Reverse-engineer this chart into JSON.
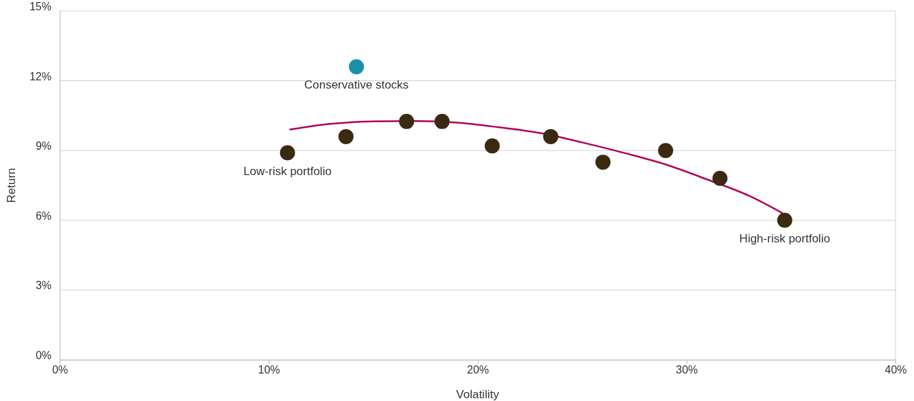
{
  "chart_data": {
    "type": "scatter",
    "xlabel": "Volatility",
    "ylabel": "Return",
    "xlim": [
      0,
      40
    ],
    "xticks": [
      {
        "value": 0,
        "label": "0%"
      },
      {
        "value": 10,
        "label": "10%"
      },
      {
        "value": 20,
        "label": "20%"
      },
      {
        "value": 30,
        "label": "30%"
      },
      {
        "value": 40,
        "label": "40%"
      }
    ],
    "ylim": [
      0,
      15
    ],
    "yticks": [
      {
        "value": 0,
        "label": "0%"
      },
      {
        "value": 3,
        "label": "3%"
      },
      {
        "value": 6,
        "label": "6%"
      },
      {
        "value": 9,
        "label": "9%"
      },
      {
        "value": 12,
        "label": "12%"
      },
      {
        "value": 15,
        "label": "15%"
      }
    ],
    "grid": "y",
    "series": [
      {
        "type": "line",
        "color": "#b0005a",
        "line_style": "solid",
        "x": [
          11.0,
          13,
          15,
          17,
          19,
          21,
          23,
          25,
          27,
          29,
          31,
          33,
          34.6
        ],
        "values": [
          9.9,
          10.15,
          10.25,
          10.27,
          10.2,
          10.0,
          9.75,
          9.35,
          8.9,
          8.4,
          7.75,
          7.05,
          6.3
        ]
      },
      {
        "marker": "circle",
        "color": "#3b2a12",
        "x": [
          10.9,
          13.7,
          16.6,
          18.3,
          20.7,
          23.5,
          26.0,
          29.0,
          31.6,
          34.7
        ],
        "values": [
          8.9,
          9.6,
          10.25,
          10.25,
          9.2,
          9.6,
          8.5,
          9.0,
          7.8,
          6.0
        ]
      },
      {
        "marker": "circle",
        "color": "#1a8fa8",
        "x": [
          14.2
        ],
        "values": [
          12.6
        ]
      }
    ],
    "annotations": [
      {
        "text": "Conservative stocks",
        "x": 14.2,
        "y": 12.6
      },
      {
        "text": "Low-risk portfolio",
        "x": 10.9,
        "y": 8.9
      },
      {
        "text": "High-risk portfolio",
        "x": 34.7,
        "y": 6.0
      }
    ]
  }
}
